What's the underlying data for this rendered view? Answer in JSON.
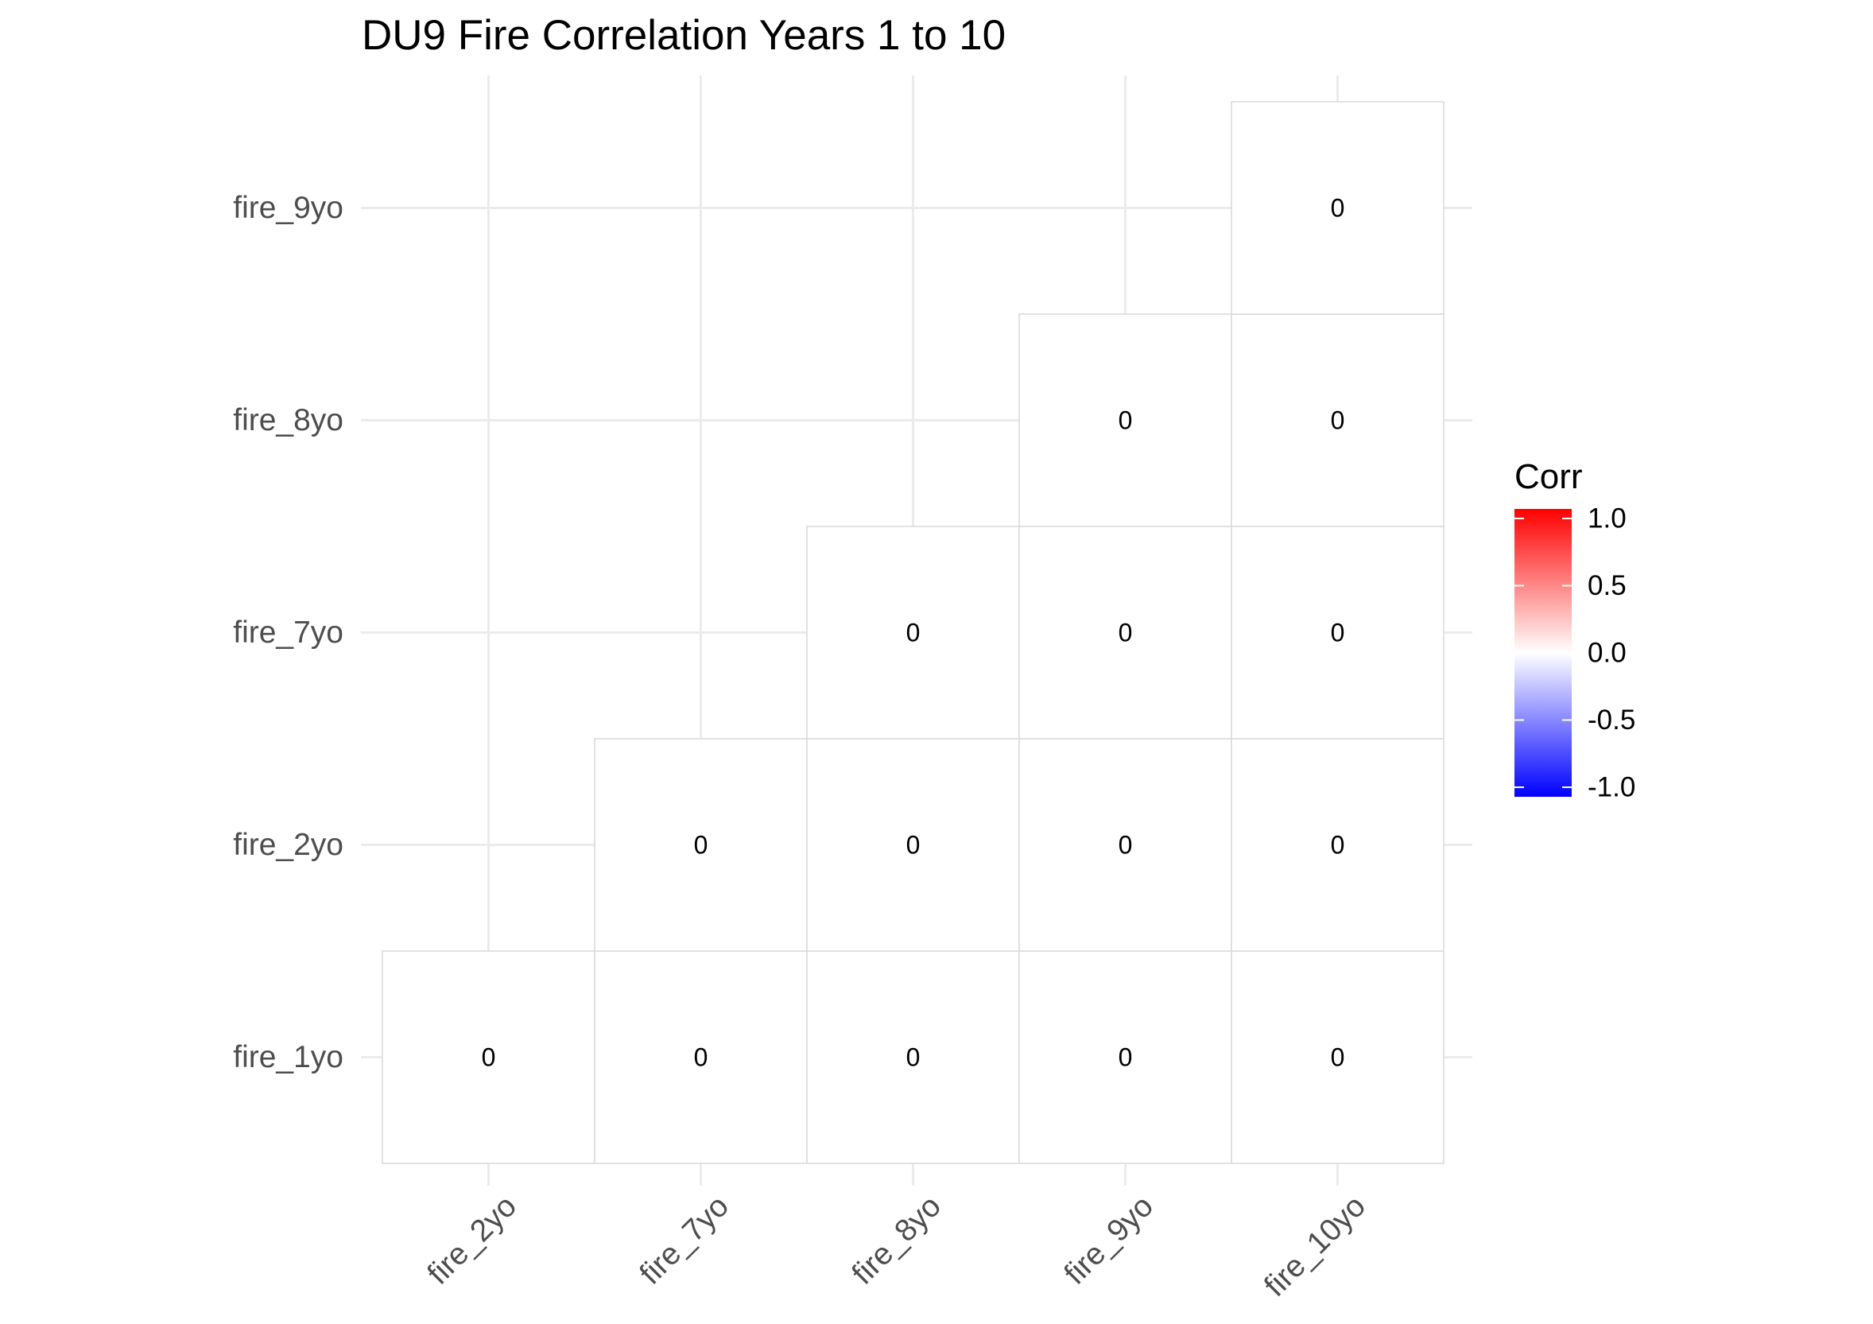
{
  "chart_data": {
    "type": "heatmap",
    "title": "DU9 Fire Correlation Years 1 to 10",
    "xlabel": "",
    "ylabel": "",
    "x_categories": [
      "fire_2yo",
      "fire_7yo",
      "fire_8yo",
      "fire_9yo",
      "fire_10yo"
    ],
    "y_categories": [
      "fire_1yo",
      "fire_2yo",
      "fire_7yo",
      "fire_8yo",
      "fire_9yo"
    ],
    "cells": [
      {
        "x": "fire_2yo",
        "y": "fire_1yo",
        "value": 0,
        "label": "0"
      },
      {
        "x": "fire_7yo",
        "y": "fire_1yo",
        "value": 0,
        "label": "0"
      },
      {
        "x": "fire_8yo",
        "y": "fire_1yo",
        "value": 0,
        "label": "0"
      },
      {
        "x": "fire_9yo",
        "y": "fire_1yo",
        "value": 0,
        "label": "0"
      },
      {
        "x": "fire_10yo",
        "y": "fire_1yo",
        "value": 0,
        "label": "0"
      },
      {
        "x": "fire_7yo",
        "y": "fire_2yo",
        "value": 0,
        "label": "0"
      },
      {
        "x": "fire_8yo",
        "y": "fire_2yo",
        "value": 0,
        "label": "0"
      },
      {
        "x": "fire_9yo",
        "y": "fire_2yo",
        "value": 0,
        "label": "0"
      },
      {
        "x": "fire_10yo",
        "y": "fire_2yo",
        "value": 0,
        "label": "0"
      },
      {
        "x": "fire_8yo",
        "y": "fire_7yo",
        "value": 0,
        "label": "0"
      },
      {
        "x": "fire_9yo",
        "y": "fire_7yo",
        "value": 0,
        "label": "0"
      },
      {
        "x": "fire_10yo",
        "y": "fire_7yo",
        "value": 0,
        "label": "0"
      },
      {
        "x": "fire_9yo",
        "y": "fire_8yo",
        "value": 0,
        "label": "0"
      },
      {
        "x": "fire_10yo",
        "y": "fire_8yo",
        "value": 0,
        "label": "0"
      },
      {
        "x": "fire_10yo",
        "y": "fire_9yo",
        "value": 0,
        "label": "0"
      }
    ],
    "legend": {
      "title": "Corr",
      "placement": "right",
      "limits": [
        -1,
        1
      ],
      "breaks": [
        1.0,
        0.5,
        0.0,
        -0.5,
        -1.0
      ],
      "break_labels": [
        "1.0",
        "0.5",
        "0.0",
        "-0.5",
        "-1.0"
      ],
      "colors": {
        "low": "#0000ff",
        "mid": "#ffffff",
        "high": "#ff0000"
      }
    },
    "grid": true,
    "colors": {
      "grid": "#ebebeb",
      "tile_border": "#d9d9d9",
      "tick_text": "#4d4d4d"
    }
  }
}
